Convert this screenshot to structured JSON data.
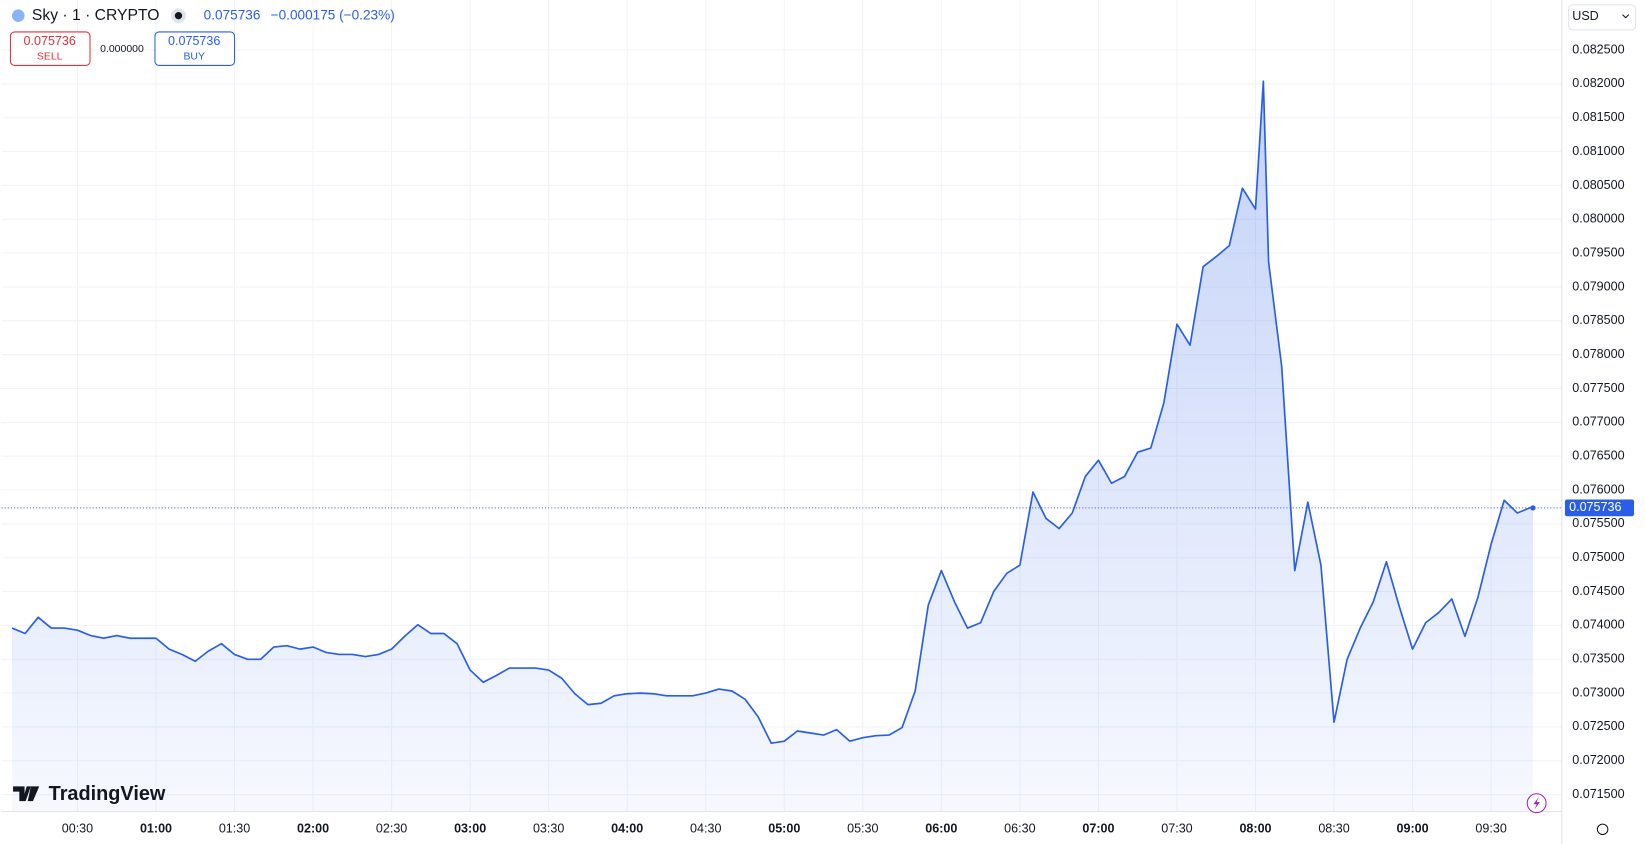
{
  "header": {
    "symbol": "Sky · 1 · CRYPTO",
    "price": "0.075736",
    "change": "−0.000175 (−0.23%)",
    "sell_price": "0.075736",
    "sell_label": "SELL",
    "spread": "0.000000",
    "buy_price": "0.075736",
    "buy_label": "BUY",
    "currency": "USD",
    "logo": "TradingView"
  },
  "chart_data": {
    "type": "area",
    "color": "#2a5ee8",
    "x": [
      "00:05",
      "00:10",
      "00:15",
      "00:20",
      "00:25",
      "00:30",
      "00:35",
      "00:40",
      "00:45",
      "00:50",
      "00:55",
      "01:00",
      "01:05",
      "01:10",
      "01:15",
      "01:20",
      "01:25",
      "01:30",
      "01:35",
      "01:40",
      "01:45",
      "01:50",
      "01:55",
      "02:00",
      "02:05",
      "02:10",
      "02:15",
      "02:20",
      "02:25",
      "02:30",
      "02:35",
      "02:40",
      "02:45",
      "02:50",
      "02:55",
      "03:00",
      "03:05",
      "03:10",
      "03:15",
      "03:20",
      "03:25",
      "03:30",
      "03:35",
      "03:40",
      "03:45",
      "03:50",
      "03:55",
      "04:00",
      "04:05",
      "04:10",
      "04:15",
      "04:20",
      "04:25",
      "04:30",
      "04:35",
      "04:40",
      "04:45",
      "04:50",
      "04:55",
      "05:00",
      "05:05",
      "05:10",
      "05:15",
      "05:20",
      "05:25",
      "05:30",
      "05:35",
      "05:40",
      "05:45",
      "05:50",
      "05:55",
      "06:00",
      "06:05",
      "06:10",
      "06:15",
      "06:20",
      "06:25",
      "06:30",
      "06:35",
      "06:40",
      "06:45",
      "06:50",
      "06:55",
      "07:00",
      "07:05",
      "07:10",
      "07:15",
      "07:20",
      "07:25",
      "07:30",
      "07:35",
      "07:40",
      "07:45",
      "07:50",
      "07:55",
      "08:00",
      "08:03",
      "08:05",
      "08:10",
      "08:15",
      "08:20",
      "08:25",
      "08:30",
      "08:35",
      "08:40",
      "08:45",
      "08:50",
      "08:55",
      "09:00",
      "09:05",
      "09:10",
      "09:15",
      "09:20",
      "09:25",
      "09:30",
      "09:35",
      "09:40",
      "09:45",
      "09:46"
    ],
    "values": [
      0.07396,
      0.07388,
      0.07412,
      0.07396,
      0.07396,
      0.07393,
      0.07385,
      0.07381,
      0.07385,
      0.07381,
      0.07381,
      0.07381,
      0.07365,
      0.07357,
      0.07347,
      0.07362,
      0.07373,
      0.07357,
      0.0735,
      0.0735,
      0.07368,
      0.0737,
      0.07365,
      0.07368,
      0.0736,
      0.07357,
      0.07357,
      0.07354,
      0.07357,
      0.07365,
      0.07384,
      0.07401,
      0.07388,
      0.07388,
      0.07373,
      0.07334,
      0.07316,
      0.07326,
      0.07337,
      0.07337,
      0.07337,
      0.07334,
      0.07322,
      0.07299,
      0.07283,
      0.07285,
      0.07296,
      0.07299,
      0.073,
      0.07299,
      0.07296,
      0.07296,
      0.07296,
      0.073,
      0.07306,
      0.07303,
      0.07291,
      0.07265,
      0.07226,
      0.07229,
      0.07244,
      0.07241,
      0.07238,
      0.07246,
      0.07229,
      0.07234,
      0.07237,
      0.07238,
      0.07249,
      0.07303,
      0.0743,
      0.07481,
      0.07435,
      0.07396,
      0.07404,
      0.0745,
      0.07477,
      0.07489,
      0.07597,
      0.07558,
      0.07543,
      0.07566,
      0.0762,
      0.07644,
      0.0761,
      0.0762,
      0.07656,
      0.07662,
      0.07729,
      0.07845,
      0.07814,
      0.0793,
      0.07945,
      0.07961,
      0.08046,
      0.08015,
      0.08204,
      0.07937,
      0.07783,
      0.07481,
      0.07582,
      0.07489,
      0.07257,
      0.0735,
      0.07396,
      0.07435,
      0.07494,
      0.07427,
      0.07365,
      0.07404,
      0.07419,
      0.07439,
      0.07384,
      0.07442,
      0.0752,
      0.07585,
      0.07566,
      0.07574,
      0.075736
    ],
    "last_value": 0.075736,
    "xlim": [
      "00:01",
      "09:57"
    ],
    "xticks": [
      "00:30",
      "01:00",
      "01:30",
      "02:00",
      "02:30",
      "03:00",
      "03:30",
      "04:00",
      "04:30",
      "05:00",
      "05:30",
      "06:00",
      "06:30",
      "07:00",
      "07:30",
      "08:00",
      "08:30",
      "09:00",
      "09:30"
    ],
    "ylim": [
      0.07125,
      0.08324
    ],
    "yticks": [
      {
        "value": 0.0715,
        "label": "0.071500"
      },
      {
        "value": 0.072,
        "label": "0.072000"
      },
      {
        "value": 0.0725,
        "label": "0.072500"
      },
      {
        "value": 0.073,
        "label": "0.073000"
      },
      {
        "value": 0.0735,
        "label": "0.073500"
      },
      {
        "value": 0.074,
        "label": "0.074000"
      },
      {
        "value": 0.0745,
        "label": "0.074500"
      },
      {
        "value": 0.075,
        "label": "0.075000"
      },
      {
        "value": 0.0755,
        "label": "0.075500"
      },
      {
        "value": 0.076,
        "label": "0.076000"
      },
      {
        "value": 0.0765,
        "label": "0.076500"
      },
      {
        "value": 0.077,
        "label": "0.077000"
      },
      {
        "value": 0.0775,
        "label": "0.077500"
      },
      {
        "value": 0.078,
        "label": "0.078000"
      },
      {
        "value": 0.0785,
        "label": "0.078500"
      },
      {
        "value": 0.079,
        "label": "0.079000"
      },
      {
        "value": 0.0795,
        "label": "0.079500"
      },
      {
        "value": 0.08,
        "label": "0.080000"
      },
      {
        "value": 0.0805,
        "label": "0.080500"
      },
      {
        "value": 0.081,
        "label": "0.081000"
      },
      {
        "value": 0.0815,
        "label": "0.081500"
      },
      {
        "value": 0.082,
        "label": "0.082000"
      },
      {
        "value": 0.0825,
        "label": "0.082500"
      }
    ],
    "grid": true
  }
}
